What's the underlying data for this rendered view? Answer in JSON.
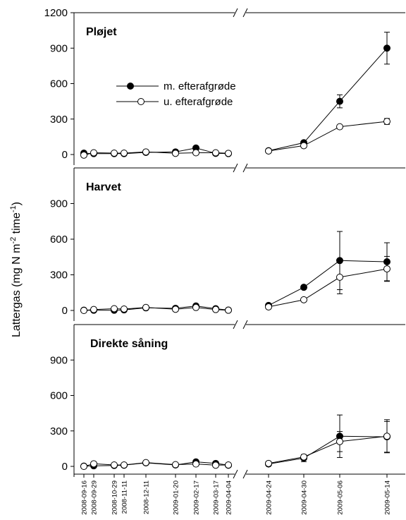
{
  "chart_data": {
    "type": "line",
    "ylabel": "Lattergas (mg N m",
    "ylabel_sup1": "-2",
    "ylabel_mid": " time",
    "ylabel_sup2": "-1",
    "ylabel_end": ")",
    "ylim": [
      0,
      1200
    ],
    "yticks": [
      "0",
      "300",
      "600",
      "900",
      "1200"
    ],
    "x": [
      "2008-09-16",
      "2008-09-29",
      "2008-10-29",
      "2008-11-11",
      "2008-12-11",
      "2009-01-20",
      "2009-02-17",
      "2009-03-17",
      "2009-04-04",
      "2009-04-24",
      "2009-04-30",
      "2009-05-06",
      "2009-05-14"
    ],
    "axis_break": "between 2009-04-04 and 2009-04-24",
    "legend": {
      "placement": "top-left of first panel",
      "entries": [
        "m. efterafgrøde",
        "u. efterafgrøde"
      ]
    },
    "panels": [
      {
        "title": "Pløjet",
        "series": [
          {
            "name": "m. efterafgrøde",
            "marker": "filled",
            "values": [
              12,
              8,
              8,
              8,
              18,
              22,
              55,
              10,
              8,
              32,
              100,
              450,
              900
            ],
            "error": [
              0,
              0,
              0,
              0,
              0,
              0,
              0,
              0,
              0,
              0,
              0,
              55,
              135
            ]
          },
          {
            "name": "u. efterafgrøde",
            "marker": "open",
            "values": [
              -5,
              15,
              12,
              12,
              22,
              10,
              15,
              15,
              10,
              30,
              75,
              235,
              280
            ],
            "error": [
              0,
              0,
              0,
              0,
              0,
              0,
              0,
              0,
              0,
              0,
              0,
              0,
              25
            ]
          }
        ]
      },
      {
        "title": "Harvet",
        "series": [
          {
            "name": "m. efterafgrøde",
            "marker": "filled",
            "values": [
              2,
              2,
              2,
              5,
              22,
              18,
              38,
              15,
              3,
              42,
              195,
              420,
              410
            ],
            "error": [
              0,
              0,
              0,
              0,
              0,
              0,
              0,
              0,
              0,
              0,
              0,
              245,
              160
            ]
          },
          {
            "name": "u. efterafgrøde",
            "marker": "open",
            "values": [
              0,
              8,
              15,
              12,
              25,
              10,
              25,
              8,
              2,
              30,
              90,
              280,
              350
            ],
            "error": [
              0,
              0,
              0,
              0,
              0,
              0,
              0,
              0,
              0,
              0,
              0,
              140,
              105
            ]
          }
        ]
      },
      {
        "title": "Direkte såning",
        "series": [
          {
            "name": "m. efterafgrøde",
            "marker": "filled",
            "values": [
              2,
              5,
              8,
              10,
              30,
              12,
              38,
              25,
              10,
              20,
              70,
              255,
              250
            ],
            "error": [
              0,
              0,
              0,
              0,
              0,
              0,
              0,
              0,
              0,
              0,
              30,
              180,
              130
            ]
          },
          {
            "name": "u. efterafgrøde",
            "marker": "open",
            "values": [
              0,
              22,
              12,
              12,
              32,
              15,
              20,
              10,
              12,
              25,
              80,
              210,
              255
            ],
            "error": [
              0,
              0,
              0,
              0,
              0,
              0,
              0,
              0,
              0,
              0,
              0,
              85,
              140
            ]
          }
        ]
      }
    ]
  }
}
